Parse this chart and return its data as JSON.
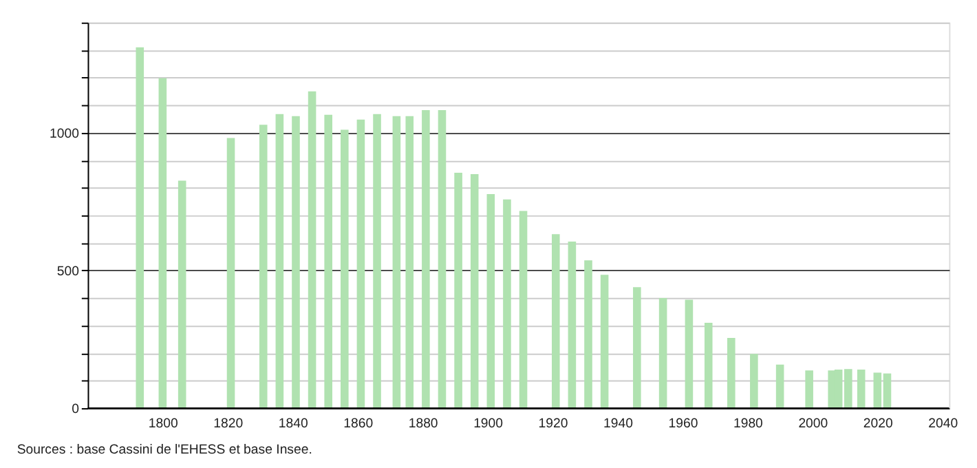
{
  "chart_data": {
    "type": "bar",
    "x": [
      1793,
      1800,
      1806,
      1821,
      1831,
      1836,
      1841,
      1846,
      1851,
      1856,
      1861,
      1866,
      1872,
      1876,
      1881,
      1886,
      1891,
      1896,
      1901,
      1906,
      1911,
      1921,
      1926,
      1931,
      1936,
      1946,
      1954,
      1962,
      1968,
      1975,
      1982,
      1990,
      1999,
      2006,
      2008,
      2011,
      2015,
      2020,
      2023
    ],
    "series": [
      {
        "color": "#b0e2b0",
        "values": [
          1310,
          1198,
          826,
          981,
          1029,
          1068,
          1060,
          1150,
          1065,
          1011,
          1048,
          1068,
          1060,
          1060,
          1082,
          1082,
          855,
          850,
          777,
          758,
          716,
          632,
          605,
          537,
          484,
          439,
          400,
          394,
          310,
          255,
          197,
          158,
          137,
          137,
          140,
          142,
          140,
          129,
          126
        ]
      }
    ],
    "xlim": [
      1779,
      2040
    ],
    "xticks": [
      1800,
      1820,
      1840,
      1860,
      1880,
      1900,
      1920,
      1940,
      1960,
      1980,
      2000,
      2020,
      2040
    ],
    "ylim": [
      0,
      1400
    ],
    "yticks": [
      0,
      {
        "value": 100,
        "label": null
      },
      {
        "value": 200,
        "label": null
      },
      {
        "value": 300,
        "label": null
      },
      {
        "value": 400,
        "label": null
      },
      500,
      {
        "value": 600,
        "label": null
      },
      {
        "value": 700,
        "label": null
      },
      {
        "value": 800,
        "label": null
      },
      {
        "value": 900,
        "label": null
      },
      1000,
      {
        "value": 1100,
        "label": null
      },
      {
        "value": 1200,
        "label": null
      },
      {
        "value": 1300,
        "label": null
      },
      {
        "value": 1400,
        "label": null
      }
    ],
    "grid": "y",
    "annotations": [
      "Sources : base Cassini de l'EHESS et base Insee."
    ]
  }
}
